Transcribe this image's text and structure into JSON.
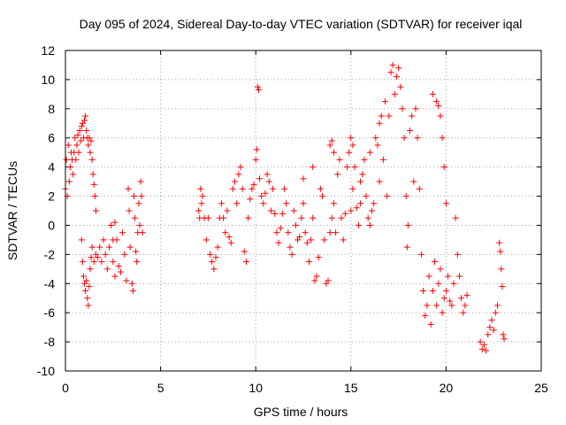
{
  "chart_data": {
    "type": "scatter",
    "title": "Day 095 of 2024, Sidereal Day-to-day VTEC variation (SDTVAR) for receiver iqal",
    "xlabel": "GPS time / hours",
    "ylabel": "SDTVAR / TECUs",
    "xlim": [
      0,
      25
    ],
    "ylim": [
      -10,
      12
    ],
    "xticks": [
      "0",
      "5",
      "10",
      "15",
      "20",
      "25"
    ],
    "yticks": [
      "-10",
      "-8",
      "-6",
      "-4",
      "-2",
      "0",
      "2",
      "4",
      "6",
      "8",
      "10",
      "12"
    ],
    "grid": true,
    "marker": "+",
    "color": "#ff0000",
    "series": [
      {
        "name": "SDTVAR",
        "points": [
          [
            0.0,
            2.5
          ],
          [
            0.05,
            4.5
          ],
          [
            0.1,
            2.0
          ],
          [
            0.15,
            5.5
          ],
          [
            0.2,
            3.0
          ],
          [
            0.25,
            4.0
          ],
          [
            0.3,
            5.0
          ],
          [
            0.35,
            4.5
          ],
          [
            0.4,
            3.5
          ],
          [
            0.45,
            5.0
          ],
          [
            0.5,
            6.0
          ],
          [
            0.55,
            4.5
          ],
          [
            0.6,
            5.5
          ],
          [
            0.65,
            6.2
          ],
          [
            0.7,
            5.0
          ],
          [
            0.75,
            6.5
          ],
          [
            0.8,
            5.8
          ],
          [
            0.85,
            6.8
          ],
          [
            0.9,
            7.0
          ],
          [
            0.95,
            6.0
          ],
          [
            1.0,
            7.2
          ],
          [
            1.05,
            7.5
          ],
          [
            1.1,
            6.5
          ],
          [
            1.15,
            6.0
          ],
          [
            1.2,
            5.5
          ],
          [
            1.25,
            6.0
          ],
          [
            1.3,
            5.0
          ],
          [
            1.35,
            5.8
          ],
          [
            1.4,
            4.5
          ],
          [
            1.45,
            3.5
          ],
          [
            1.5,
            2.8
          ],
          [
            1.55,
            2.0
          ],
          [
            1.6,
            1.0
          ],
          [
            0.85,
            -1.0
          ],
          [
            0.9,
            -2.5
          ],
          [
            0.95,
            -3.5
          ],
          [
            1.0,
            -4.0
          ],
          [
            1.05,
            -4.5
          ],
          [
            1.1,
            -3.8
          ],
          [
            1.15,
            -5.0
          ],
          [
            1.2,
            -5.5
          ],
          [
            1.25,
            -4.2
          ],
          [
            1.3,
            -3.0
          ],
          [
            1.35,
            -2.2
          ],
          [
            1.4,
            -1.5
          ],
          [
            1.5,
            -2.5
          ],
          [
            1.6,
            -2.0
          ],
          [
            1.7,
            -2.2
          ],
          [
            1.8,
            -1.5
          ],
          [
            1.9,
            -2.5
          ],
          [
            2.0,
            -1.0
          ],
          [
            2.1,
            -2.0
          ],
          [
            2.2,
            -3.0
          ],
          [
            2.3,
            -1.5
          ],
          [
            2.4,
            0.0
          ],
          [
            2.5,
            -2.5
          ],
          [
            2.6,
            -3.5
          ],
          [
            2.7,
            -1.0
          ],
          [
            2.8,
            -2.8
          ],
          [
            2.9,
            -3.2
          ],
          [
            3.0,
            -0.5
          ],
          [
            3.1,
            -2.0
          ],
          [
            3.2,
            -3.8
          ],
          [
            3.3,
            2.5
          ],
          [
            3.35,
            1.0
          ],
          [
            3.4,
            -1.5
          ],
          [
            3.5,
            -4.0
          ],
          [
            3.55,
            -4.5
          ],
          [
            3.6,
            2.0
          ],
          [
            3.65,
            0.5
          ],
          [
            3.7,
            -1.8
          ],
          [
            3.75,
            -2.5
          ],
          [
            3.8,
            -0.5
          ],
          [
            3.85,
            1.5
          ],
          [
            3.9,
            0.0
          ],
          [
            3.95,
            3.0
          ],
          [
            4.0,
            2.0
          ],
          [
            4.05,
            -0.5
          ],
          [
            2.5,
            -1.0
          ],
          [
            2.6,
            0.2
          ],
          [
            7.0,
            1.0
          ],
          [
            7.05,
            0.5
          ],
          [
            7.1,
            2.5
          ],
          [
            7.15,
            1.5
          ],
          [
            7.2,
            2.0
          ],
          [
            7.3,
            0.5
          ],
          [
            7.4,
            -1.0
          ],
          [
            7.5,
            0.5
          ],
          [
            7.6,
            -2.0
          ],
          [
            7.7,
            -2.5
          ],
          [
            7.8,
            -3.0
          ],
          [
            7.9,
            -2.2
          ],
          [
            8.0,
            -1.5
          ],
          [
            8.1,
            0.5
          ],
          [
            8.2,
            1.5
          ],
          [
            8.3,
            0.5
          ],
          [
            8.4,
            -0.5
          ],
          [
            8.5,
            1.0
          ],
          [
            8.6,
            -0.8
          ],
          [
            8.7,
            -1.2
          ],
          [
            8.8,
            2.5
          ],
          [
            8.9,
            3.0
          ],
          [
            9.0,
            1.5
          ],
          [
            9.1,
            3.5
          ],
          [
            9.2,
            4.0
          ],
          [
            9.3,
            2.5
          ],
          [
            9.4,
            -1.8
          ],
          [
            9.5,
            -2.5
          ],
          [
            9.6,
            0.5
          ],
          [
            9.7,
            1.8
          ],
          [
            9.8,
            2.5
          ],
          [
            9.9,
            2.8
          ],
          [
            10.0,
            4.5
          ],
          [
            10.05,
            5.2
          ],
          [
            10.1,
            9.5
          ],
          [
            10.15,
            9.3
          ],
          [
            10.2,
            3.2
          ],
          [
            10.3,
            2.0
          ],
          [
            10.4,
            1.5
          ],
          [
            10.5,
            2.2
          ],
          [
            10.6,
            3.5
          ],
          [
            10.7,
            3.0
          ],
          [
            10.8,
            1.0
          ],
          [
            10.9,
            2.5
          ],
          [
            11.0,
            0.8
          ],
          [
            11.1,
            -0.5
          ],
          [
            11.2,
            -1.2
          ],
          [
            11.3,
            -0.2
          ],
          [
            11.4,
            0.8
          ],
          [
            11.5,
            2.5
          ],
          [
            11.6,
            1.5
          ],
          [
            11.7,
            -0.5
          ],
          [
            11.8,
            -1.5
          ],
          [
            11.9,
            -2.0
          ],
          [
            12.0,
            1.0
          ],
          [
            12.1,
            0.0
          ],
          [
            12.2,
            -1.0
          ],
          [
            12.3,
            -0.8
          ],
          [
            12.4,
            0.5
          ],
          [
            12.5,
            1.5
          ],
          [
            12.6,
            -0.5
          ],
          [
            12.7,
            -1.2
          ],
          [
            12.8,
            -2.5
          ],
          [
            12.9,
            -1.0
          ],
          [
            13.0,
            0.5
          ],
          [
            13.1,
            -3.8
          ],
          [
            13.2,
            -3.5
          ],
          [
            13.3,
            -2.2
          ],
          [
            13.4,
            2.5
          ],
          [
            13.5,
            2.0
          ],
          [
            13.6,
            -1.0
          ],
          [
            13.7,
            -4.0
          ],
          [
            13.8,
            -3.8
          ],
          [
            13.9,
            -0.5
          ],
          [
            14.0,
            0.5
          ],
          [
            14.1,
            1.5
          ],
          [
            14.2,
            -0.5
          ],
          [
            14.3,
            3.5
          ],
          [
            14.4,
            4.5
          ],
          [
            14.5,
            0.5
          ],
          [
            14.6,
            -1.0
          ],
          [
            14.7,
            0.8
          ],
          [
            14.8,
            4.0
          ],
          [
            14.9,
            5.0
          ],
          [
            15.0,
            1.0
          ],
          [
            15.1,
            2.5
          ],
          [
            15.2,
            4.0
          ],
          [
            15.3,
            1.2
          ],
          [
            15.4,
            0.0
          ],
          [
            15.5,
            1.5
          ],
          [
            15.6,
            3.5
          ],
          [
            15.7,
            4.5
          ],
          [
            15.8,
            2.0
          ],
          [
            15.9,
            0.5
          ],
          [
            16.0,
            0.0
          ],
          [
            16.1,
            1.0
          ],
          [
            16.2,
            1.5
          ],
          [
            16.3,
            6.0
          ],
          [
            16.4,
            5.5
          ],
          [
            16.5,
            3.0
          ],
          [
            16.6,
            7.5
          ],
          [
            16.7,
            4.5
          ],
          [
            16.8,
            8.5
          ],
          [
            16.9,
            2.0
          ],
          [
            17.0,
            7.5
          ],
          [
            17.1,
            10.5
          ],
          [
            17.2,
            11.0
          ],
          [
            17.3,
            9.0
          ],
          [
            17.4,
            10.2
          ],
          [
            17.5,
            10.8
          ],
          [
            17.6,
            9.5
          ],
          [
            17.7,
            8.0
          ],
          [
            17.8,
            6.0
          ],
          [
            17.9,
            2.0
          ],
          [
            17.95,
            -1.5
          ],
          [
            18.0,
            0.0
          ],
          [
            18.1,
            6.5
          ],
          [
            18.2,
            7.5
          ],
          [
            18.3,
            3.0
          ],
          [
            18.4,
            8.0
          ],
          [
            18.5,
            6.0
          ],
          [
            18.6,
            2.5
          ],
          [
            18.7,
            -2.0
          ],
          [
            18.8,
            -4.5
          ],
          [
            18.9,
            -6.2
          ],
          [
            19.0,
            -5.5
          ],
          [
            19.1,
            -3.5
          ],
          [
            19.2,
            -6.8
          ],
          [
            19.3,
            -4.5
          ],
          [
            19.4,
            -2.5
          ],
          [
            19.5,
            -5.5
          ],
          [
            19.6,
            -4.0
          ],
          [
            19.7,
            -3.0
          ],
          [
            19.8,
            -6.0
          ],
          [
            19.9,
            -5.0
          ],
          [
            20.0,
            -4.5
          ],
          [
            20.1,
            -3.5
          ],
          [
            20.2,
            -5.2
          ],
          [
            20.3,
            -5.5
          ],
          [
            20.4,
            -4.0
          ],
          [
            20.5,
            0.5
          ],
          [
            20.6,
            -2.0
          ],
          [
            20.7,
            -3.5
          ],
          [
            20.8,
            -5.0
          ],
          [
            20.9,
            -6.0
          ],
          [
            21.0,
            -5.5
          ],
          [
            21.1,
            -4.8
          ],
          [
            21.8,
            -8.0
          ],
          [
            21.9,
            -8.5
          ],
          [
            22.0,
            -8.2
          ],
          [
            22.1,
            -8.6
          ],
          [
            22.2,
            -7.5
          ],
          [
            22.3,
            -7.0
          ],
          [
            22.4,
            -6.5
          ],
          [
            22.5,
            -7.2
          ],
          [
            22.6,
            -6.0
          ],
          [
            22.7,
            -5.5
          ],
          [
            22.8,
            -1.2
          ],
          [
            22.85,
            -1.8
          ],
          [
            22.9,
            -3.0
          ],
          [
            22.95,
            -4.2
          ],
          [
            23.0,
            -7.5
          ],
          [
            23.05,
            -7.8
          ],
          [
            19.6,
            8.2
          ],
          [
            19.7,
            7.5
          ],
          [
            19.8,
            6.0
          ],
          [
            19.9,
            4.0
          ],
          [
            20.0,
            1.5
          ],
          [
            19.5,
            8.5
          ],
          [
            19.3,
            9.0
          ],
          [
            14.0,
            5.8
          ],
          [
            13.9,
            5.5
          ],
          [
            14.1,
            5.0
          ],
          [
            15.0,
            6.0
          ],
          [
            15.1,
            5.5
          ],
          [
            16.5,
            7.0
          ],
          [
            16.0,
            5.0
          ],
          [
            15.5,
            3.0
          ],
          [
            13.0,
            4.0
          ],
          [
            12.5,
            3.2
          ]
        ]
      }
    ]
  }
}
